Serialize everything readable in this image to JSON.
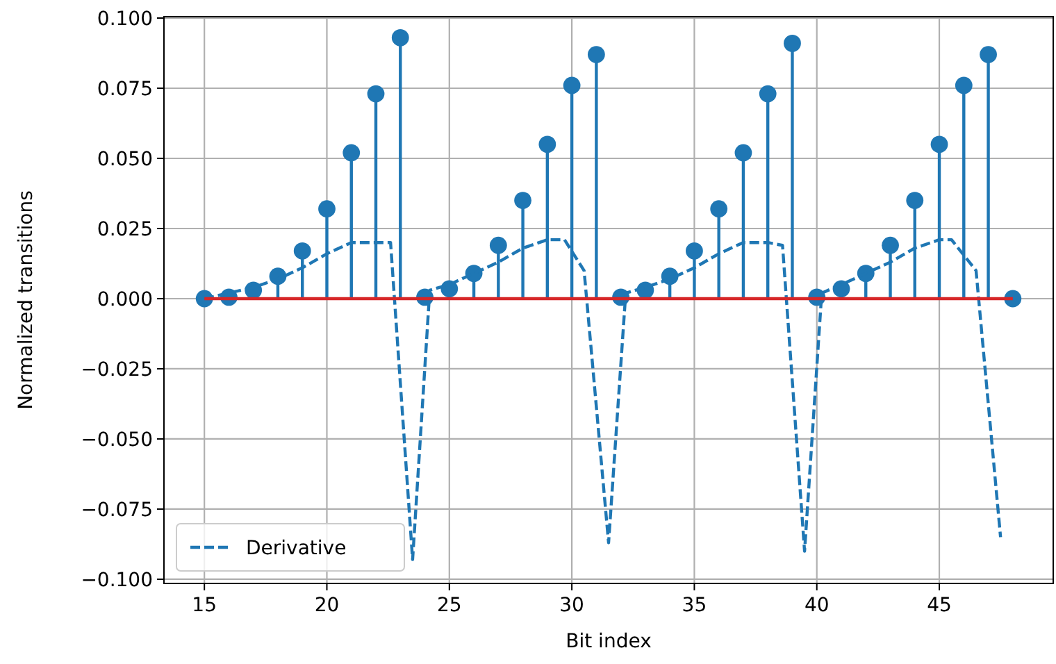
{
  "chart_data": {
    "type": "lollipop",
    "xlabel": "Bit index",
    "ylabel": "Normalized transitions",
    "x": [
      15,
      16,
      17,
      18,
      19,
      20,
      21,
      22,
      23,
      24,
      25,
      26,
      27,
      28,
      29,
      30,
      31,
      32,
      33,
      34,
      35,
      36,
      37,
      38,
      39,
      40,
      41,
      42,
      43,
      44,
      45,
      46,
      47,
      48
    ],
    "series": [
      {
        "color": "#1f77b4",
        "marker": "circle",
        "values": [
          0,
          0.0005,
          0.003,
          0.008,
          0.017,
          0.032,
          0.052,
          0.073,
          0.093,
          0.0005,
          0.0035,
          0.009,
          0.019,
          0.035,
          0.055,
          0.076,
          0.087,
          0.0005,
          0.003,
          0.008,
          0.017,
          0.032,
          0.052,
          0.073,
          0.091,
          0.0005,
          0.0035,
          0.009,
          0.019,
          0.035,
          0.055,
          0.076,
          0.087,
          0
        ]
      },
      {
        "type": "line",
        "name": "Derivative",
        "color": "#1f77b4",
        "line_style": "dashed",
        "marker": "none",
        "x": [
          15,
          16,
          17,
          18,
          19,
          20,
          21,
          22,
          22.6,
          23.5,
          24.2,
          25,
          26,
          27,
          28,
          29,
          29.7,
          30.5,
          31.5,
          32.2,
          33,
          34,
          35,
          36,
          37,
          38,
          38.6,
          39.5,
          40.2,
          41,
          42,
          43,
          44,
          45,
          45.5,
          46.5,
          47.5
        ],
        "values": [
          0,
          0.002,
          0.004,
          0.007,
          0.011,
          0.016,
          0.02,
          0.02,
          0.02,
          -0.093,
          0.003,
          0.005,
          0.009,
          0.013,
          0.018,
          0.021,
          0.021,
          0.01,
          -0.087,
          0.002,
          0.004,
          0.007,
          0.011,
          0.016,
          0.02,
          0.02,
          0.019,
          -0.09,
          0.002,
          0.005,
          0.009,
          0.013,
          0.018,
          0.021,
          0.021,
          0.01,
          -0.085
        ]
      }
    ],
    "ref_lines": [
      {
        "axis": "y",
        "value": 0,
        "color": "#d62728"
      }
    ],
    "xlim": [
      13.35,
      49.65
    ],
    "xticks": [
      15,
      20,
      25,
      30,
      35,
      40,
      45
    ],
    "ylim": [
      -0.1015,
      0.1005
    ],
    "yticks": [
      {
        "value": -0.1,
        "label": "−0.100"
      },
      {
        "value": -0.075,
        "label": "−0.075"
      },
      {
        "value": -0.05,
        "label": "−0.050"
      },
      {
        "value": -0.025,
        "label": "−0.025"
      },
      {
        "value": 0,
        "label": "0.000"
      },
      {
        "value": 0.025,
        "label": "0.025"
      },
      {
        "value": 0.05,
        "label": "0.050"
      },
      {
        "value": 0.075,
        "label": "0.075"
      },
      {
        "value": 0.1,
        "label": "0.100"
      }
    ],
    "grid": true,
    "legend": "bottom left"
  }
}
